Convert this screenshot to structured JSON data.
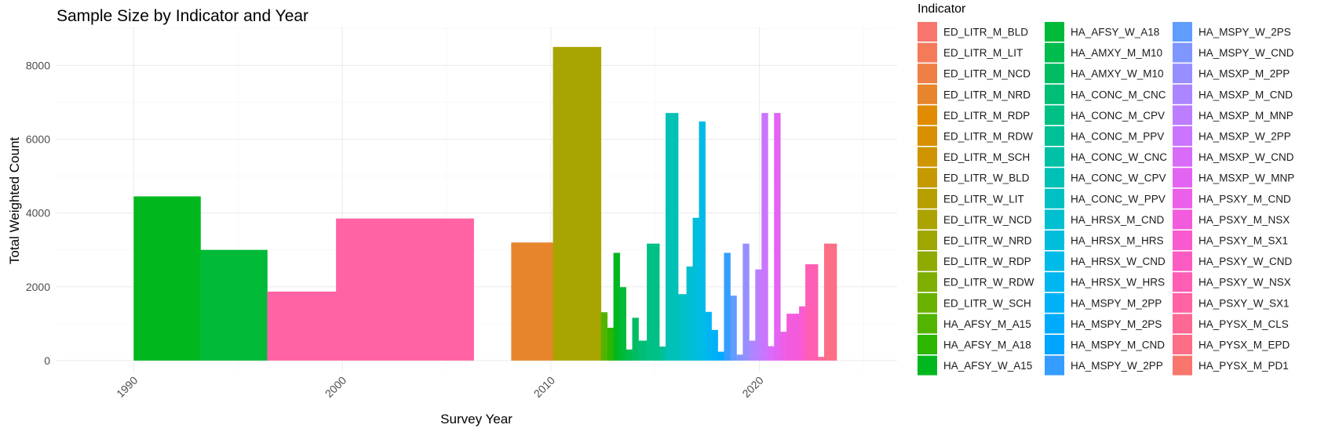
{
  "chart_data": {
    "type": "bar",
    "title": "Sample Size by Indicator and Year",
    "xlabel": "Survey Year",
    "ylabel": "Total Weighted Count",
    "xlim": [
      1986.3,
      2026.6
    ],
    "ylim": [
      -300,
      9050
    ],
    "x_ticks": [
      1990,
      2000,
      2010,
      2020
    ],
    "y_ticks": [
      0,
      2000,
      4000,
      6000,
      8000
    ],
    "grid": true,
    "legend": {
      "title": "Indicator",
      "placement": "right",
      "entries": [
        {
          "name": "ED_LITR_M_BLD",
          "color": "#F8766D"
        },
        {
          "name": "ED_LITR_M_LIT",
          "color": "#F47A5A"
        },
        {
          "name": "ED_LITR_M_NCD",
          "color": "#EE7F45"
        },
        {
          "name": "ED_LITR_M_NRD",
          "color": "#E7852C"
        },
        {
          "name": "ED_LITR_M_RDP",
          "color": "#E08B00"
        },
        {
          "name": "ED_LITR_M_RDW",
          "color": "#D89000"
        },
        {
          "name": "ED_LITR_M_SCH",
          "color": "#CF9500"
        },
        {
          "name": "ED_LITR_W_BLD",
          "color": "#C49A00"
        },
        {
          "name": "ED_LITR_W_LIT",
          "color": "#B89F00"
        },
        {
          "name": "ED_LITR_W_NCD",
          "color": "#ACA300"
        },
        {
          "name": "ED_LITR_W_NRD",
          "color": "#9EA700"
        },
        {
          "name": "ED_LITR_W_RDP",
          "color": "#8FAA00"
        },
        {
          "name": "ED_LITR_W_RDW",
          "color": "#7EAE00"
        },
        {
          "name": "ED_LITR_W_SCH",
          "color": "#6BB100"
        },
        {
          "name": "HA_AFSY_M_A15",
          "color": "#53B400"
        },
        {
          "name": "HA_AFSY_M_A18",
          "color": "#2DB600"
        },
        {
          "name": "HA_AFSY_W_A15",
          "color": "#00B81E"
        },
        {
          "name": "HA_AFSY_W_A18",
          "color": "#00BA38"
        },
        {
          "name": "HA_AMXY_M_M10",
          "color": "#00BB4E"
        },
        {
          "name": "HA_AMXY_W_M10",
          "color": "#00BD63"
        },
        {
          "name": "HA_CONC_M_CNC",
          "color": "#00BE75"
        },
        {
          "name": "HA_CONC_M_CPV",
          "color": "#00C086"
        },
        {
          "name": "HA_CONC_M_PPV",
          "color": "#00C096"
        },
        {
          "name": "HA_CONC_W_CNC",
          "color": "#00C1A6"
        },
        {
          "name": "HA_CONC_W_CPV",
          "color": "#00C1B5"
        },
        {
          "name": "HA_CONC_W_PPV",
          "color": "#00C0C3"
        },
        {
          "name": "HA_HRSX_M_CND",
          "color": "#00BFD0"
        },
        {
          "name": "HA_HRSX_M_HRS",
          "color": "#00BDDC"
        },
        {
          "name": "HA_HRSX_W_CND",
          "color": "#00BAE7"
        },
        {
          "name": "HA_HRSX_W_HRS",
          "color": "#00B6F0"
        },
        {
          "name": "HA_MSPY_M_2PP",
          "color": "#00B1F8"
        },
        {
          "name": "HA_MSPY_M_2PS",
          "color": "#00ABFD"
        },
        {
          "name": "HA_MSPY_M_CND",
          "color": "#00A5FF"
        },
        {
          "name": "HA_MSPY_W_2PP",
          "color": "#359DFF"
        },
        {
          "name": "HA_MSPY_W_2PS",
          "color": "#619CFF"
        },
        {
          "name": "HA_MSPY_W_CND",
          "color": "#7F96FF"
        },
        {
          "name": "HA_MSXP_M_2PP",
          "color": "#978EFF"
        },
        {
          "name": "HA_MSXP_M_CND",
          "color": "#AB86FF"
        },
        {
          "name": "HA_MSXP_M_MNP",
          "color": "#BC7DFF"
        },
        {
          "name": "HA_MSXP_W_2PP",
          "color": "#CB74FE"
        },
        {
          "name": "HA_MSXP_W_CND",
          "color": "#D86CF9"
        },
        {
          "name": "HA_MSXP_W_MNP",
          "color": "#E364F2"
        },
        {
          "name": "HA_PSXY_M_CND",
          "color": "#EC5FE9"
        },
        {
          "name": "HA_PSXY_M_NSX",
          "color": "#F35BDD"
        },
        {
          "name": "HA_PSXY_M_SX1",
          "color": "#F95AD0"
        },
        {
          "name": "HA_PSXY_W_CND",
          "color": "#FC5BC2"
        },
        {
          "name": "HA_PSXY_W_NSX",
          "color": "#FE5EB3"
        },
        {
          "name": "HA_PSXY_W_SX1",
          "color": "#FF63A4"
        },
        {
          "name": "HA_PYSX_M_CLS",
          "color": "#FE6895"
        },
        {
          "name": "HA_PYSX_M_EPD",
          "color": "#FC6E86"
        },
        {
          "name": "HA_PYSX_M_PD1",
          "color": "#F8766D"
        }
      ]
    },
    "bars": [
      {
        "x0": 1990.0,
        "x1": 1993.2,
        "y": 4450,
        "color": "#00B81E"
      },
      {
        "x0": 1993.2,
        "x1": 1996.4,
        "y": 3000,
        "color": "#00BA38"
      },
      {
        "x0": 1996.4,
        "x1": 1999.7,
        "y": 1870,
        "color": "#FF63A4"
      },
      {
        "x0": 1999.7,
        "x1": 2006.3,
        "y": 3850,
        "color": "#FF63A4"
      },
      {
        "x0": 2008.1,
        "x1": 2010.1,
        "y": 3200,
        "color": "#E7852C"
      },
      {
        "x0": 2010.1,
        "x1": 2012.4,
        "y": 8500,
        "color": "#A8A400"
      },
      {
        "x0": 2012.4,
        "x1": 2012.7,
        "y": 1310,
        "color": "#53B400"
      },
      {
        "x0": 2012.7,
        "x1": 2013.0,
        "y": 890,
        "color": "#2DB600"
      },
      {
        "x0": 2013.0,
        "x1": 2013.3,
        "y": 2920,
        "color": "#00B81E"
      },
      {
        "x0": 2013.3,
        "x1": 2013.6,
        "y": 1990,
        "color": "#00BA38"
      },
      {
        "x0": 2013.6,
        "x1": 2013.9,
        "y": 300,
        "color": "#00BB4E"
      },
      {
        "x0": 2013.9,
        "x1": 2014.2,
        "y": 1160,
        "color": "#00BD63"
      },
      {
        "x0": 2014.2,
        "x1": 2014.6,
        "y": 540,
        "color": "#00BE75"
      },
      {
        "x0": 2014.6,
        "x1": 2015.2,
        "y": 3170,
        "color": "#00C086"
      },
      {
        "x0": 2015.2,
        "x1": 2015.5,
        "y": 380,
        "color": "#00C096"
      },
      {
        "x0": 2015.5,
        "x1": 2016.1,
        "y": 6710,
        "color": "#00C1B5"
      },
      {
        "x0": 2016.1,
        "x1": 2016.5,
        "y": 1800,
        "color": "#00C0C3"
      },
      {
        "x0": 2016.5,
        "x1": 2016.8,
        "y": 2550,
        "color": "#00BFD0"
      },
      {
        "x0": 2016.8,
        "x1": 2017.1,
        "y": 3870,
        "color": "#00BDDC"
      },
      {
        "x0": 2017.1,
        "x1": 2017.4,
        "y": 6480,
        "color": "#00BAE7"
      },
      {
        "x0": 2017.4,
        "x1": 2017.7,
        "y": 1320,
        "color": "#00B6F0"
      },
      {
        "x0": 2017.7,
        "x1": 2018.0,
        "y": 830,
        "color": "#00B1F8"
      },
      {
        "x0": 2018.0,
        "x1": 2018.3,
        "y": 240,
        "color": "#00ABFD"
      },
      {
        "x0": 2018.3,
        "x1": 2018.6,
        "y": 2920,
        "color": "#359DFF"
      },
      {
        "x0": 2018.6,
        "x1": 2018.9,
        "y": 1760,
        "color": "#619CFF"
      },
      {
        "x0": 2018.9,
        "x1": 2019.2,
        "y": 160,
        "color": "#7F96FF"
      },
      {
        "x0": 2019.2,
        "x1": 2019.5,
        "y": 3170,
        "color": "#978EFF"
      },
      {
        "x0": 2019.5,
        "x1": 2019.8,
        "y": 540,
        "color": "#AB86FF"
      },
      {
        "x0": 2019.8,
        "x1": 2020.1,
        "y": 2470,
        "color": "#BC7DFF"
      },
      {
        "x0": 2020.1,
        "x1": 2020.4,
        "y": 6710,
        "color": "#CB74FE"
      },
      {
        "x0": 2020.4,
        "x1": 2020.7,
        "y": 390,
        "color": "#D86CF9"
      },
      {
        "x0": 2020.7,
        "x1": 2021.0,
        "y": 6710,
        "color": "#E364F2"
      },
      {
        "x0": 2021.0,
        "x1": 2021.3,
        "y": 780,
        "color": "#EC5FE9"
      },
      {
        "x0": 2021.3,
        "x1": 2021.9,
        "y": 1270,
        "color": "#F35BDD"
      },
      {
        "x0": 2021.9,
        "x1": 2022.2,
        "y": 1470,
        "color": "#F95AD0"
      },
      {
        "x0": 2022.2,
        "x1": 2022.8,
        "y": 2610,
        "color": "#FE5EB3"
      },
      {
        "x0": 2022.8,
        "x1": 2023.1,
        "y": 100,
        "color": "#FE6895"
      },
      {
        "x0": 2023.1,
        "x1": 2023.7,
        "y": 3170,
        "color": "#FC6E86"
      }
    ]
  }
}
